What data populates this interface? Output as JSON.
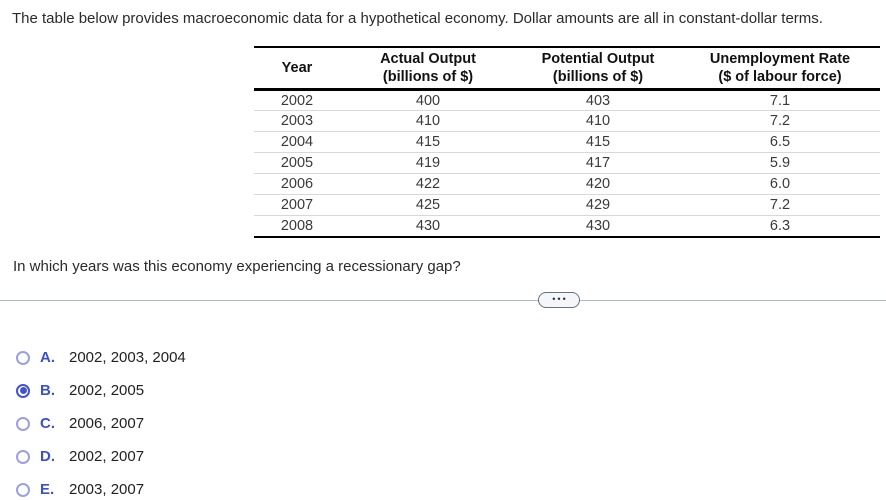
{
  "intro": "The table below provides macroeconomic data for a hypothetical economy. Dollar amounts are all in constant-dollar terms.",
  "question": "In which years was this economy experiencing a recessionary gap?",
  "table": {
    "columns": [
      {
        "title": "Year",
        "subtitle": ""
      },
      {
        "title": "Actual Output",
        "subtitle": "(billions of $)"
      },
      {
        "title": "Potential Output",
        "subtitle": "(billions of $)"
      },
      {
        "title": "Unemployment Rate",
        "subtitle": "($ of labour force)"
      }
    ],
    "rows": [
      [
        "2002",
        "400",
        "403",
        "7.1"
      ],
      [
        "2003",
        "410",
        "410",
        "7.2"
      ],
      [
        "2004",
        "415",
        "415",
        "6.5"
      ],
      [
        "2005",
        "419",
        "417",
        "5.9"
      ],
      [
        "2006",
        "422",
        "420",
        "6.0"
      ],
      [
        "2007",
        "425",
        "429",
        "7.2"
      ],
      [
        "2008",
        "430",
        "430",
        "6.3"
      ]
    ]
  },
  "divider": {
    "ellipsis": "•••"
  },
  "options": [
    {
      "letter": "A.",
      "text": "2002, 2003, 2004",
      "selected": false
    },
    {
      "letter": "B.",
      "text": "2002, 2005",
      "selected": true
    },
    {
      "letter": "C.",
      "text": "2006, 2007",
      "selected": false
    },
    {
      "letter": "D.",
      "text": "2002, 2007",
      "selected": false
    },
    {
      "letter": "E.",
      "text": "2003, 2007",
      "selected": false
    }
  ],
  "colors": {
    "accent": "#3c51c9",
    "radio_unselected_ring": "#99a2dd",
    "divider_line": "#b3b9c3",
    "table_border": "#000000"
  }
}
